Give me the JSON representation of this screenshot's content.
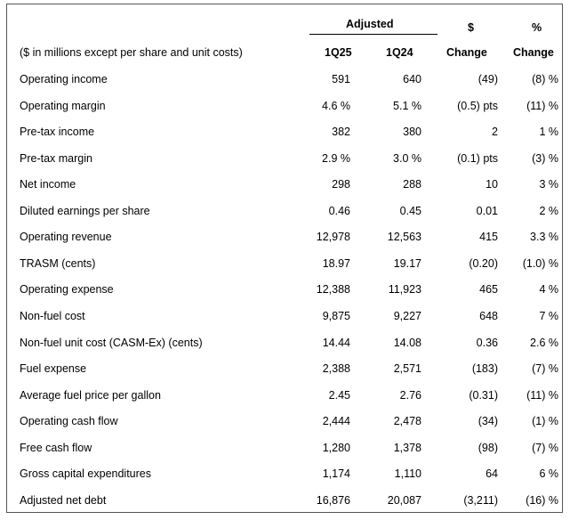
{
  "header": {
    "adjusted": "Adjusted",
    "dollar_top": "$",
    "pct_top": "%",
    "units_label": "($ in millions except per share and unit costs)",
    "col_1q25": "1Q25",
    "col_1q24": "1Q24",
    "col_dollar_change": "Change",
    "col_pct_change": "Change"
  },
  "rows": [
    {
      "label": "Operating income",
      "q25": "591",
      "q24": "640",
      "chg": "(49)",
      "pct": "(8) %"
    },
    {
      "label": "Operating margin",
      "q25": "4.6 %",
      "q24": "5.1 %",
      "chg": "(0.5) pts",
      "pct": "(11) %"
    },
    {
      "label": "Pre-tax income",
      "q25": "382",
      "q24": "380",
      "chg": "2",
      "pct": "1 %"
    },
    {
      "label": "Pre-tax margin",
      "q25": "2.9 %",
      "q24": "3.0 %",
      "chg": "(0.1) pts",
      "pct": "(3) %"
    },
    {
      "label": "Net income",
      "q25": "298",
      "q24": "288",
      "chg": "10",
      "pct": "3 %"
    },
    {
      "label": "Diluted earnings per share",
      "q25": "0.46",
      "q24": "0.45",
      "chg": "0.01",
      "pct": "2 %"
    },
    {
      "label": "Operating revenue",
      "q25": "12,978",
      "q24": "12,563",
      "chg": "415",
      "pct": "3.3 %"
    },
    {
      "label": "TRASM (cents)",
      "q25": "18.97",
      "q24": "19.17",
      "chg": "(0.20)",
      "pct": "(1.0) %"
    },
    {
      "label": "Operating expense",
      "q25": "12,388",
      "q24": "11,923",
      "chg": "465",
      "pct": "4 %"
    },
    {
      "label": "Non-fuel cost",
      "q25": "9,875",
      "q24": "9,227",
      "chg": "648",
      "pct": "7 %"
    },
    {
      "label": "Non-fuel unit cost (CASM-Ex) (cents)",
      "q25": "14.44",
      "q24": "14.08",
      "chg": "0.36",
      "pct": "2.6 %"
    },
    {
      "label": "Fuel expense",
      "q25": "2,388",
      "q24": "2,571",
      "chg": "(183)",
      "pct": "(7) %"
    },
    {
      "label": "Average fuel price per gallon",
      "q25": "2.45",
      "q24": "2.76",
      "chg": "(0.31)",
      "pct": "(11) %"
    },
    {
      "label": "Operating cash flow",
      "q25": "2,444",
      "q24": "2,478",
      "chg": "(34)",
      "pct": "(1) %"
    },
    {
      "label": "Free cash flow",
      "q25": "1,280",
      "q24": "1,378",
      "chg": "(98)",
      "pct": "(7) %"
    },
    {
      "label": "Gross capital expenditures",
      "q25": "1,174",
      "q24": "1,110",
      "chg": "64",
      "pct": "6 %"
    },
    {
      "label": "Adjusted net debt",
      "q25": "16,876",
      "q24": "20,087",
      "chg": "(3,211)",
      "pct": "(16) %"
    }
  ]
}
